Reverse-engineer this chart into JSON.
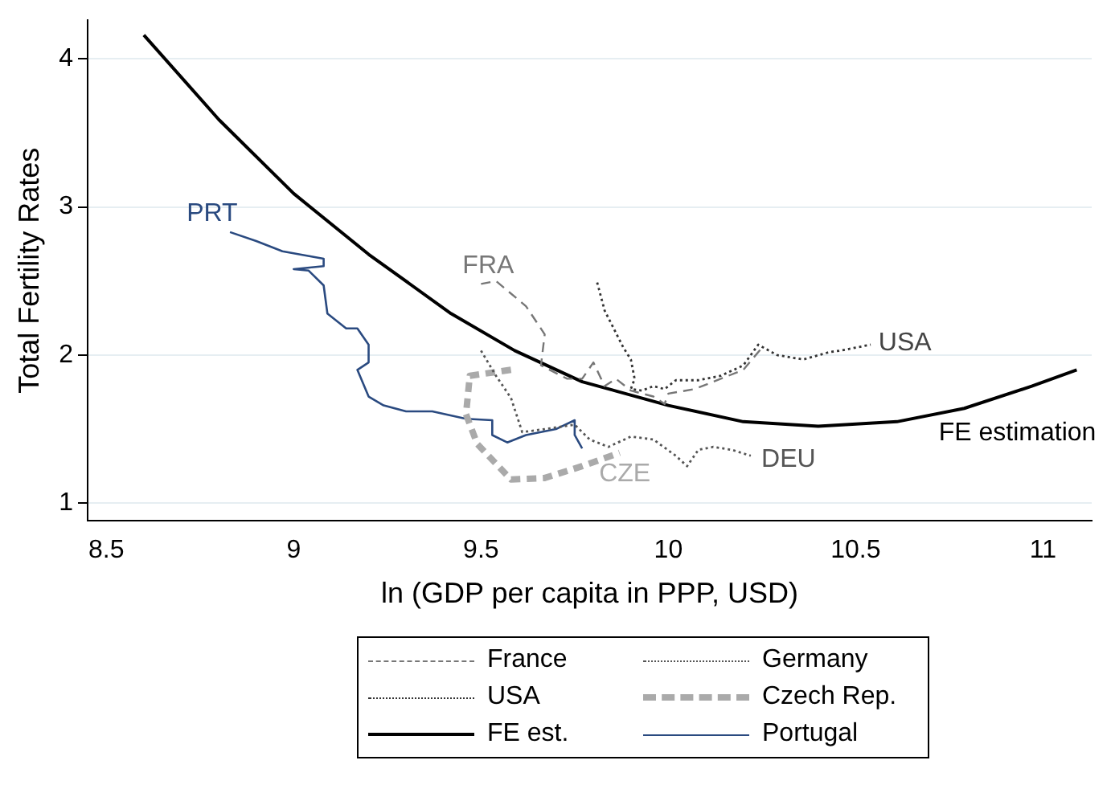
{
  "chart_data": {
    "type": "line",
    "xlabel": "ln (GDP per capita in PPP, USD)",
    "ylabel": "Total Fertility Rates",
    "xlim": [
      8.45,
      11.13
    ],
    "xticks": [
      8.5,
      9,
      9.5,
      10,
      10.5,
      11
    ],
    "ylim": [
      0.88,
      4.26
    ],
    "yticks": [
      1,
      2,
      3,
      4
    ],
    "grid": "y",
    "legend": "bottom",
    "series": [
      {
        "name": "France",
        "color": "#777777",
        "line_style": "dashed",
        "x": [
          9.5,
          9.54,
          9.62,
          9.67,
          9.66,
          9.73,
          9.77,
          9.8,
          9.83,
          9.86,
          9.9,
          9.96,
          9.99,
          10.0,
          10.07,
          10.14,
          10.2,
          10.25
        ],
        "values": [
          2.48,
          2.5,
          2.33,
          2.14,
          1.93,
          1.84,
          1.84,
          1.95,
          1.79,
          1.84,
          1.76,
          1.72,
          1.67,
          1.74,
          1.77,
          1.84,
          1.9,
          2.05
        ]
      },
      {
        "name": "Germany",
        "color": "#555555",
        "line_style": "dotted",
        "x": [
          9.5,
          9.54,
          9.58,
          9.61,
          9.67,
          9.75,
          9.79,
          9.84,
          9.9,
          9.96,
          10.02,
          10.05,
          10.08,
          10.12,
          10.17,
          10.22
        ],
        "values": [
          2.03,
          1.86,
          1.71,
          1.48,
          1.5,
          1.53,
          1.43,
          1.38,
          1.45,
          1.43,
          1.32,
          1.25,
          1.36,
          1.38,
          1.36,
          1.32
        ]
      },
      {
        "name": "USA",
        "color": "#333333",
        "line_style": "dotted",
        "x": [
          9.81,
          9.83,
          9.88,
          9.9,
          9.91,
          9.9,
          9.93,
          9.96,
          9.99,
          10.02,
          10.08,
          10.14,
          10.2,
          10.24,
          10.29,
          10.36,
          10.43,
          10.46,
          10.54
        ],
        "values": [
          2.49,
          2.3,
          2.05,
          1.97,
          1.84,
          1.77,
          1.76,
          1.79,
          1.77,
          1.83,
          1.83,
          1.86,
          1.93,
          2.07,
          2.0,
          1.97,
          2.02,
          2.03,
          2.07
        ]
      },
      {
        "name": "Czech Rep.",
        "color": "#aaaaaa",
        "line_style": "dashed",
        "x": [
          9.58,
          9.47,
          9.46,
          9.49,
          9.58,
          9.67,
          9.77,
          9.87
        ],
        "values": [
          1.9,
          1.86,
          1.6,
          1.4,
          1.16,
          1.17,
          1.25,
          1.34
        ]
      },
      {
        "name": "FE est.",
        "color": "#000000",
        "line_style": "solid",
        "x": [
          8.6,
          8.8,
          9.0,
          9.2,
          9.42,
          9.59,
          9.77,
          10.0,
          10.2,
          10.4,
          10.61,
          10.79,
          10.97,
          11.09
        ],
        "values": [
          4.16,
          3.59,
          3.09,
          2.68,
          2.28,
          2.03,
          1.82,
          1.66,
          1.55,
          1.52,
          1.55,
          1.64,
          1.79,
          1.9
        ]
      },
      {
        "name": "Portugal",
        "color": "#2a4a80",
        "line_style": "solid",
        "x": [
          8.83,
          8.9,
          8.97,
          9.08,
          9.08,
          9.0,
          9.04,
          9.08,
          9.09,
          9.14,
          9.17,
          9.2,
          9.2,
          9.17,
          9.2,
          9.24,
          9.3,
          9.37,
          9.46,
          9.53,
          9.53,
          9.57,
          9.62,
          9.7,
          9.75,
          9.75,
          9.77
        ],
        "values": [
          2.83,
          2.77,
          2.7,
          2.65,
          2.6,
          2.58,
          2.57,
          2.47,
          2.28,
          2.18,
          2.18,
          2.07,
          1.95,
          1.9,
          1.72,
          1.66,
          1.62,
          1.62,
          1.57,
          1.56,
          1.46,
          1.41,
          1.46,
          1.5,
          1.56,
          1.46,
          1.37
        ]
      }
    ],
    "annotations": [
      "PRT",
      "FRA",
      "USA",
      "DEU",
      "CZE",
      "FE estimation"
    ]
  }
}
